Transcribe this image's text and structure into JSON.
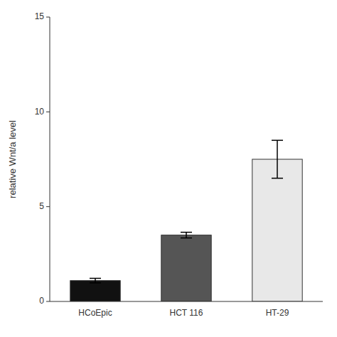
{
  "chart_data": {
    "type": "bar",
    "categories": [
      "HCoEpic",
      "HCT 116",
      "HT-29"
    ],
    "values": [
      1.1,
      3.5,
      7.5
    ],
    "errors": [
      0.12,
      0.15,
      1.0
    ],
    "colors": [
      "#111111",
      "#555555",
      "#e8e8e8"
    ],
    "ylabel": "relative Wnt/a level",
    "ylim": [
      0,
      15
    ],
    "yticks": [
      0,
      5,
      10,
      15
    ],
    "grid": false
  }
}
